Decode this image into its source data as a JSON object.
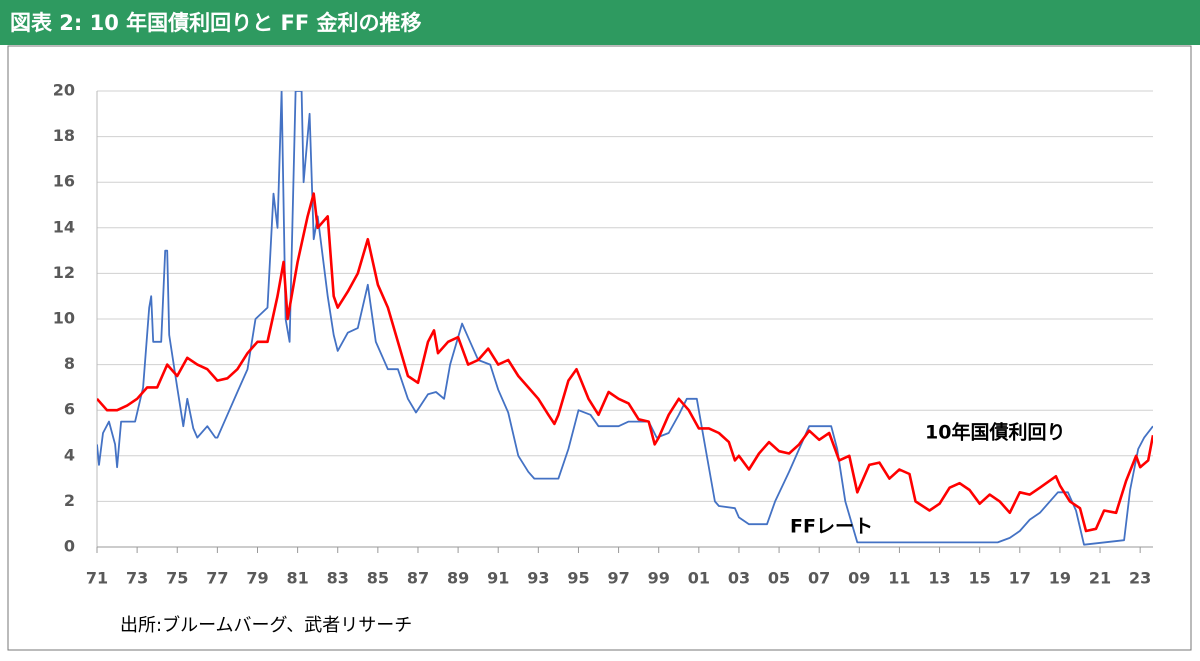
{
  "chart_data": {
    "type": "line",
    "title": "図表 2: 10 年国債利回りと FF 金利の推移",
    "source": "出所:ブルームバーグ、武者リサーチ",
    "annotations": [
      "10年国債利回り",
      "FFレート"
    ],
    "xlim": [
      1971,
      2023.64
    ],
    "ylim": [
      0,
      20
    ],
    "yticks": [
      0,
      2,
      4,
      6,
      8,
      10,
      12,
      14,
      16,
      18,
      20
    ],
    "xticks": [
      {
        "value": 1971,
        "label": "71"
      },
      {
        "value": 1973,
        "label": "73"
      },
      {
        "value": 1975,
        "label": "75"
      },
      {
        "value": 1977,
        "label": "77"
      },
      {
        "value": 1979,
        "label": "79"
      },
      {
        "value": 1981,
        "label": "81"
      },
      {
        "value": 1983,
        "label": "83"
      },
      {
        "value": 1985,
        "label": "85"
      },
      {
        "value": 1987,
        "label": "87"
      },
      {
        "value": 1989,
        "label": "89"
      },
      {
        "value": 1991,
        "label": "91"
      },
      {
        "value": 1993,
        "label": "93"
      },
      {
        "value": 1995,
        "label": "95"
      },
      {
        "value": 1997,
        "label": "97"
      },
      {
        "value": 1999,
        "label": "99"
      },
      {
        "value": 2001,
        "label": "01"
      },
      {
        "value": 2003,
        "label": "03"
      },
      {
        "value": 2005,
        "label": "05"
      },
      {
        "value": 2007,
        "label": "07"
      },
      {
        "value": 2009,
        "label": "09"
      },
      {
        "value": 2011,
        "label": "11"
      },
      {
        "value": 2013,
        "label": "13"
      },
      {
        "value": 2015,
        "label": "15"
      },
      {
        "value": 2017,
        "label": "17"
      },
      {
        "value": 2019,
        "label": "19"
      },
      {
        "value": 2021,
        "label": "21"
      },
      {
        "value": 2023,
        "label": "23"
      }
    ],
    "grid": true,
    "series": [
      {
        "color": "#4472c4",
        "x": [
          1971.0,
          1971.1,
          1971.3,
          1971.6,
          1971.9,
          1972.0,
          1972.2,
          1972.9,
          1973.3,
          1973.6,
          1973.7,
          1973.8,
          1974.2,
          1974.4,
          1974.5,
          1974.6,
          1975.0,
          1975.3,
          1975.5,
          1975.8,
          1976.0,
          1976.5,
          1976.9,
          1977.0,
          1977.5,
          1978.0,
          1978.5,
          1978.9,
          1979.5,
          1979.8,
          1980.0,
          1980.2,
          1980.4,
          1980.6,
          1980.9,
          1981.2,
          1981.3,
          1981.6,
          1981.8,
          1982.0,
          1982.5,
          1982.8,
          1983.0,
          1983.5,
          1984.0,
          1984.5,
          1984.9,
          1985.5,
          1986.0,
          1986.5,
          1986.9,
          1987.5,
          1987.9,
          1988.3,
          1988.6,
          1989.0,
          1989.2,
          1989.6,
          1990.0,
          1990.6,
          1991.0,
          1991.5,
          1992.0,
          1992.5,
          1992.8,
          1993.5,
          1994.0,
          1994.5,
          1995.0,
          1995.6,
          1996.0,
          1997.0,
          1997.5,
          1998.5,
          1998.9,
          1999.5,
          2000.0,
          2000.4,
          2000.9,
          2001.3,
          2001.8,
          2002.0,
          2002.8,
          2003.0,
          2003.5,
          2004.4,
          2004.8,
          2005.5,
          2006.5,
          2007.6,
          2007.9,
          2008.3,
          2008.9,
          2015.9,
          2016.5,
          2017.0,
          2017.5,
          2018.0,
          2018.9,
          2019.4,
          2019.8,
          2020.2,
          2022.2,
          2022.5,
          2022.9,
          2023.2,
          2023.64
        ],
        "values": [
          4.5,
          3.6,
          5.0,
          5.5,
          4.5,
          3.5,
          5.5,
          5.5,
          7.0,
          10.5,
          11.0,
          9.0,
          9.0,
          13.0,
          13.0,
          9.3,
          7.0,
          5.3,
          6.5,
          5.2,
          4.8,
          5.3,
          4.8,
          4.8,
          5.8,
          6.8,
          7.8,
          10.0,
          10.5,
          15.5,
          14.0,
          20.0,
          10.0,
          9.0,
          20.0,
          20.0,
          16.0,
          19.0,
          13.5,
          14.5,
          11.0,
          9.3,
          8.6,
          9.4,
          9.6,
          11.5,
          9.0,
          7.8,
          7.8,
          6.5,
          5.9,
          6.7,
          6.8,
          6.5,
          8.0,
          9.2,
          9.8,
          9.0,
          8.2,
          8.0,
          6.9,
          5.9,
          4.0,
          3.3,
          3.0,
          3.0,
          3.0,
          4.3,
          6.0,
          5.8,
          5.3,
          5.3,
          5.5,
          5.5,
          4.8,
          5.0,
          5.8,
          6.5,
          6.5,
          4.5,
          2.0,
          1.8,
          1.7,
          1.3,
          1.0,
          1.0,
          2.0,
          3.3,
          5.3,
          5.3,
          4.3,
          2.0,
          0.2,
          0.2,
          0.4,
          0.7,
          1.2,
          1.5,
          2.4,
          2.4,
          1.6,
          0.1,
          0.3,
          2.5,
          4.3,
          4.8,
          5.3
        ]
      },
      {
        "color": "#ff0000",
        "x": [
          1971.0,
          1971.5,
          1972.0,
          1972.5,
          1973.0,
          1973.5,
          1974.0,
          1974.5,
          1975.0,
          1975.5,
          1976.0,
          1976.5,
          1977.0,
          1977.5,
          1978.0,
          1978.5,
          1979.0,
          1979.5,
          1980.0,
          1980.3,
          1980.5,
          1981.0,
          1981.5,
          1981.8,
          1982.0,
          1982.5,
          1982.8,
          1983.0,
          1983.5,
          1984.0,
          1984.5,
          1985.0,
          1985.5,
          1986.0,
          1986.5,
          1987.0,
          1987.5,
          1987.8,
          1988.0,
          1988.5,
          1989.0,
          1989.5,
          1990.0,
          1990.5,
          1991.0,
          1991.5,
          1992.0,
          1992.5,
          1993.0,
          1993.5,
          1993.8,
          1994.0,
          1994.5,
          1994.9,
          1995.5,
          1996.0,
          1996.5,
          1997.0,
          1997.5,
          1998.0,
          1998.5,
          1998.8,
          1999.0,
          1999.5,
          2000.0,
          2000.5,
          2001.0,
          2001.5,
          2002.0,
          2002.5,
          2002.8,
          2003.0,
          2003.5,
          2004.0,
          2004.5,
          2005.0,
          2005.5,
          2006.0,
          2006.5,
          2007.0,
          2007.5,
          2008.0,
          2008.5,
          2008.9,
          2009.5,
          2010.0,
          2010.5,
          2011.0,
          2011.5,
          2011.8,
          2012.5,
          2013.0,
          2013.5,
          2014.0,
          2014.5,
          2015.0,
          2015.5,
          2016.0,
          2016.5,
          2017.0,
          2017.5,
          2018.0,
          2018.8,
          2019.0,
          2019.5,
          2020.0,
          2020.3,
          2020.8,
          2021.2,
          2021.8,
          2022.3,
          2022.8,
          2023.0,
          2023.4,
          2023.64
        ],
        "values": [
          6.5,
          6.0,
          6.0,
          6.2,
          6.5,
          7.0,
          7.0,
          8.0,
          7.5,
          8.3,
          8.0,
          7.8,
          7.3,
          7.4,
          7.8,
          8.5,
          9.0,
          9.0,
          11.0,
          12.5,
          10.0,
          12.5,
          14.5,
          15.5,
          14.0,
          14.5,
          11.0,
          10.5,
          11.2,
          12.0,
          13.5,
          11.5,
          10.5,
          9.0,
          7.5,
          7.2,
          9.0,
          9.5,
          8.5,
          9.0,
          9.2,
          8.0,
          8.2,
          8.7,
          8.0,
          8.2,
          7.5,
          7.0,
          6.5,
          5.8,
          5.4,
          5.8,
          7.3,
          7.8,
          6.5,
          5.8,
          6.8,
          6.5,
          6.3,
          5.6,
          5.5,
          4.5,
          4.8,
          5.8,
          6.5,
          6.0,
          5.2,
          5.2,
          5.0,
          4.6,
          3.8,
          4.0,
          3.4,
          4.1,
          4.6,
          4.2,
          4.1,
          4.5,
          5.1,
          4.7,
          5.0,
          3.8,
          4.0,
          2.4,
          3.6,
          3.7,
          3.0,
          3.4,
          3.2,
          2.0,
          1.6,
          1.9,
          2.6,
          2.8,
          2.5,
          1.9,
          2.3,
          2.0,
          1.5,
          2.4,
          2.3,
          2.6,
          3.1,
          2.7,
          2.0,
          1.7,
          0.7,
          0.8,
          1.6,
          1.5,
          2.9,
          4.0,
          3.5,
          3.8,
          4.9
        ]
      }
    ]
  }
}
